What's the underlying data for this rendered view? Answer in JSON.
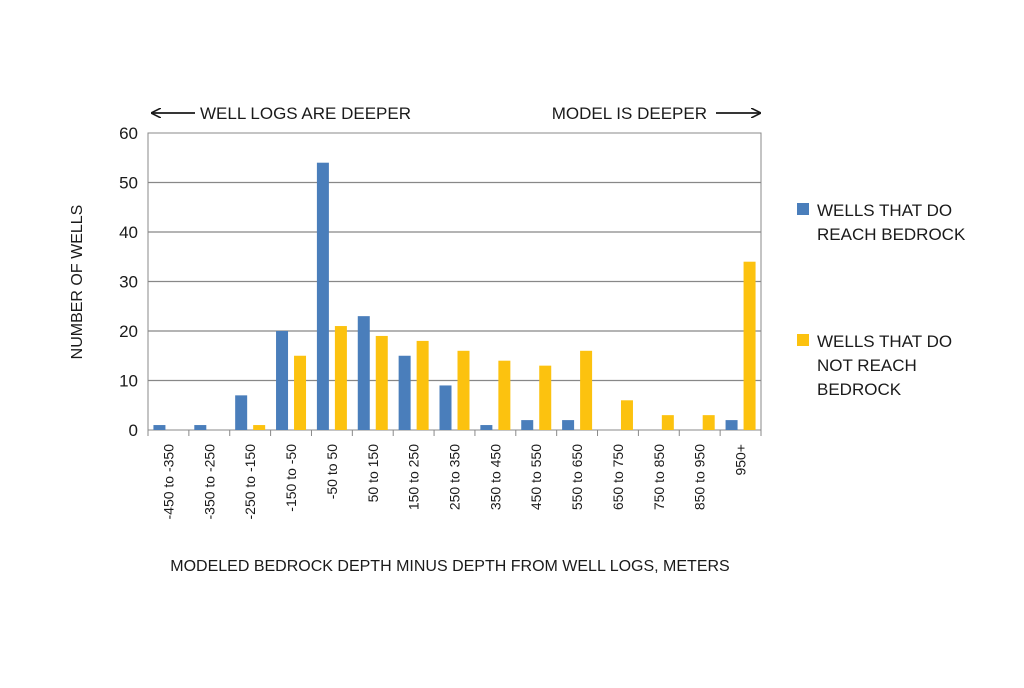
{
  "colors": {
    "series_reach": "#4a7ebb",
    "series_not_reach": "#fcc20f",
    "grid": "#888888",
    "plot_border": "#888888"
  },
  "annotations": {
    "left": "WELL LOGS ARE DEEPER",
    "right": "MODEL IS DEEPER"
  },
  "legend": {
    "series1_lines": [
      "WELLS THAT DO",
      "REACH BEDROCK"
    ],
    "series2_lines": [
      "WELLS THAT DO",
      "NOT REACH",
      "BEDROCK"
    ]
  },
  "chart_data": {
    "type": "bar",
    "title": "",
    "xlabel": "MODELED BEDROCK DEPTH MINUS DEPTH FROM WELL LOGS, METERS",
    "ylabel": "NUMBER OF WELLS",
    "ylim": [
      0,
      60
    ],
    "yticks": [
      0,
      10,
      20,
      30,
      40,
      50,
      60
    ],
    "grid": true,
    "legend_position": "right",
    "categories": [
      "-450 to -350",
      "-350 to -250",
      "-250 to -150",
      "-150 to -50",
      "-50 to 50",
      "50 to 150",
      "150 to 250",
      "250 to 350",
      "350 to 450",
      "450 to 550",
      "550 to 650",
      "650 to 750",
      "750 to 850",
      "850 to 950",
      "950+"
    ],
    "series": [
      {
        "name": "WELLS THAT DO REACH BEDROCK",
        "values": [
          1,
          1,
          7,
          20,
          54,
          23,
          15,
          9,
          1,
          2,
          2,
          0,
          0,
          0,
          2
        ]
      },
      {
        "name": "WELLS THAT DO NOT REACH BEDROCK",
        "values": [
          0,
          0,
          1,
          15,
          21,
          19,
          18,
          16,
          14,
          13,
          16,
          6,
          3,
          3,
          34
        ]
      }
    ]
  }
}
